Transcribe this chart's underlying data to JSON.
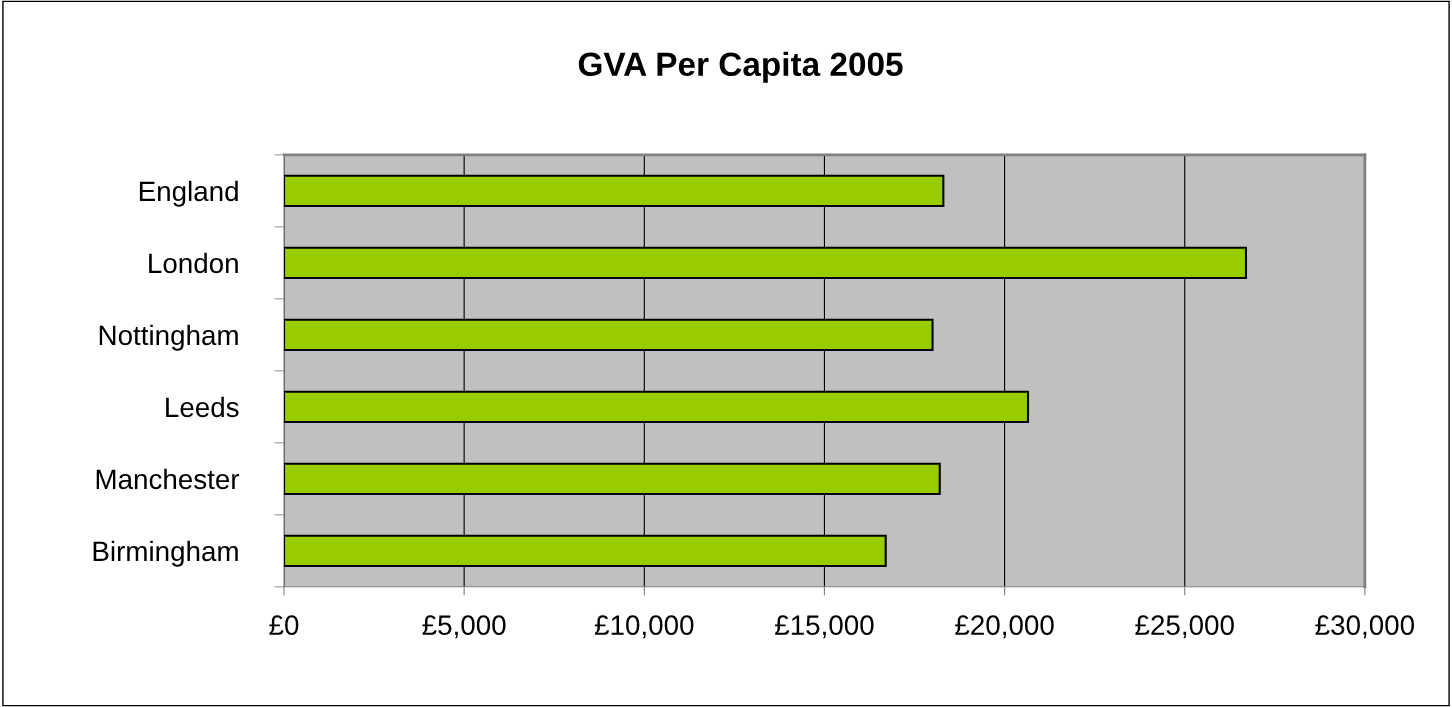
{
  "chart_data": {
    "type": "bar",
    "orientation": "horizontal",
    "title": "GVA Per Capita 2005",
    "categories": [
      "England",
      "London",
      "Nottingham",
      "Leeds",
      "Manchester",
      "Birmingham"
    ],
    "values": [
      18300,
      26700,
      18000,
      20650,
      18200,
      16700
    ],
    "color": "#99cc00",
    "xlim": [
      0,
      30000
    ],
    "xticks": [
      {
        "value": 0,
        "label": "£0"
      },
      {
        "value": 5000,
        "label": "£5,000"
      },
      {
        "value": 10000,
        "label": "£10,000"
      },
      {
        "value": 15000,
        "label": "£15,000"
      },
      {
        "value": 20000,
        "label": "£20,000"
      },
      {
        "value": 25000,
        "label": "£25,000"
      },
      {
        "value": 30000,
        "label": "£30,000"
      }
    ],
    "grid": "x",
    "legend": false
  }
}
